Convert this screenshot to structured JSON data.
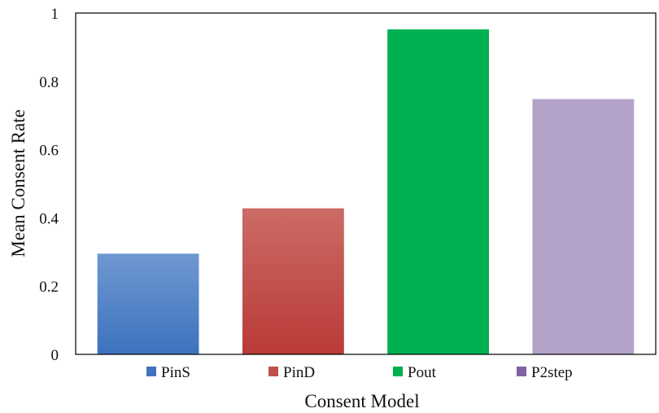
{
  "chart_data": {
    "type": "bar",
    "categories": [
      "PinS",
      "PinD",
      "Pout",
      "P2step"
    ],
    "values": [
      0.295,
      0.428,
      0.952,
      0.748
    ],
    "colors": {
      "PinS": {
        "top": "#6f98d2",
        "bottom": "#3d72bd",
        "legend": "#3f73bf"
      },
      "PinD": {
        "top": "#cc6b66",
        "bottom": "#b93a36",
        "legend": "#c0504d"
      },
      "Pout": {
        "top": "#00b050",
        "bottom": "#00b050",
        "legend": "#00b050"
      },
      "P2step": {
        "top": "#b3a2c7",
        "bottom": "#b3a2c7",
        "legend": "#8064a2"
      }
    },
    "xlabel": "Consent Model",
    "ylabel": "Mean Consent Rate",
    "ylim": [
      0,
      1
    ],
    "yticks": [
      "0",
      "0.2",
      "0.4",
      "0.6",
      "0.8",
      "1"
    ],
    "grid": false,
    "legend": "bottom"
  }
}
